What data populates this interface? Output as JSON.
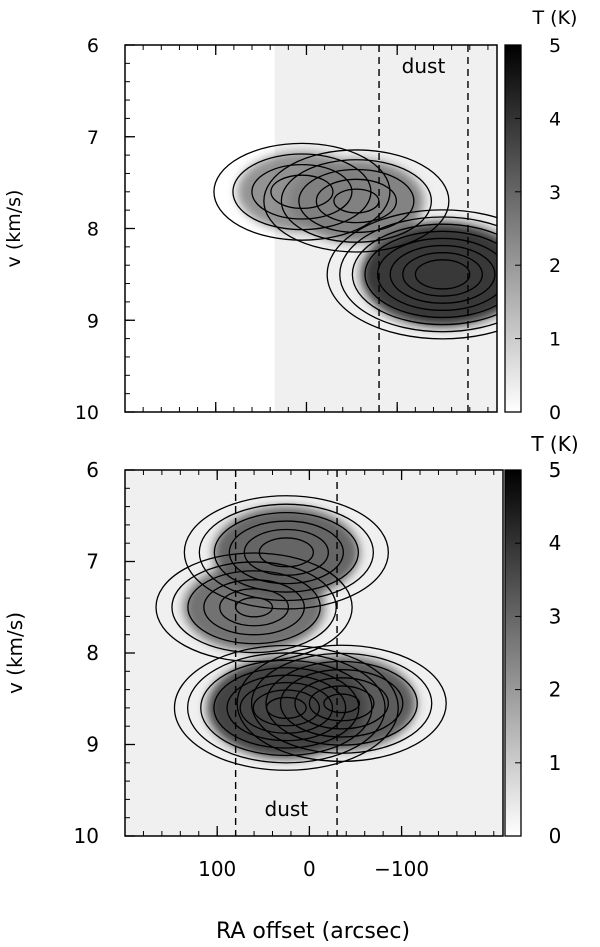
{
  "figure": {
    "xlabel": "RA offset (arcsec)"
  },
  "chart_data": [
    {
      "type": "heatmap",
      "panel": "top",
      "title": "",
      "xlabel": "RA offset (arcsec)",
      "ylabel": "v (km/s)",
      "xlim": [
        200,
        -210
      ],
      "ylim": [
        10,
        6
      ],
      "y_ticks": [
        6,
        7,
        8,
        9,
        10
      ],
      "x_ticks": [
        100,
        0,
        -100
      ],
      "x_tick_labels": [
        "100",
        "0",
        "−100"
      ],
      "colorbar": {
        "label": "T (K)",
        "range": [
          0,
          5
        ],
        "ticks": [
          0,
          1,
          2,
          3,
          4,
          5
        ]
      },
      "annotation": "dust",
      "dust_lines_x": [
        -80,
        -178
      ],
      "data_extent_x": [
        35,
        -210
      ],
      "contour_levels": [
        0.5,
        1.0,
        1.5,
        2.0,
        2.5,
        3.0,
        3.5,
        4.0
      ],
      "peaks": [
        {
          "x": -150,
          "v": 8.5,
          "T": 4.6
        },
        {
          "x": -55,
          "v": 7.7,
          "T": 2.8
        },
        {
          "x": 5,
          "v": 7.6,
          "T": 2.5
        }
      ]
    },
    {
      "type": "heatmap",
      "panel": "bottom",
      "title": "",
      "xlabel": "RA offset (arcsec)",
      "ylabel": "v (km/s)",
      "xlim": [
        200,
        -210
      ],
      "ylim": [
        10,
        6
      ],
      "y_ticks": [
        6,
        7,
        8,
        9,
        10
      ],
      "x_ticks": [
        100,
        0,
        -100
      ],
      "x_tick_labels": [
        "100",
        "0",
        "−100"
      ],
      "colorbar": {
        "label": "T (K)",
        "range": [
          0,
          5
        ],
        "ticks": [
          0,
          1,
          2,
          3,
          4,
          5
        ]
      },
      "annotation": "dust",
      "dust_lines_x": [
        80,
        -30
      ],
      "data_extent_x": [
        200,
        -210
      ],
      "contour_levels": [
        0.5,
        1.0,
        1.5,
        2.0,
        2.5,
        3.0,
        3.5,
        4.0
      ],
      "peaks": [
        {
          "x": 25,
          "v": 8.6,
          "T": 4.3
        },
        {
          "x": -35,
          "v": 8.55,
          "T": 3.7
        },
        {
          "x": 25,
          "v": 6.9,
          "T": 3.5
        },
        {
          "x": 60,
          "v": 7.5,
          "T": 3.2
        }
      ]
    }
  ]
}
